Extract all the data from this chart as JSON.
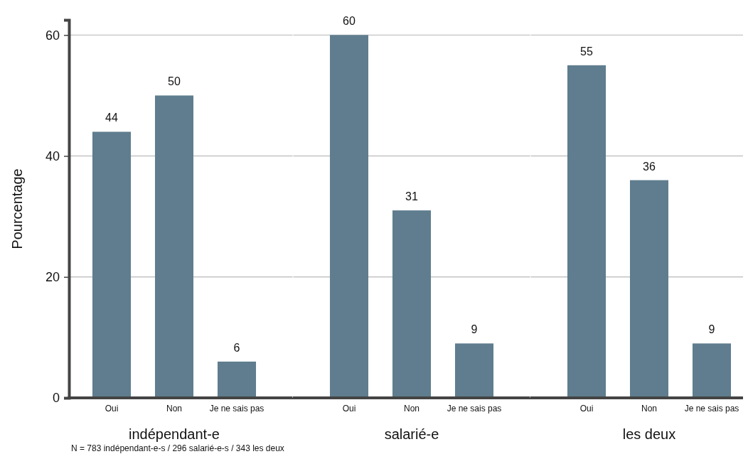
{
  "chart_data": [
    {
      "type": "bar",
      "xlabel": "indépendant-e",
      "ylabel": "Pourcentage",
      "categories": [
        "Oui",
        "Non",
        "Je ne sais pas"
      ],
      "values": [
        44,
        50,
        6
      ],
      "color": "#5f7d8e",
      "ylim": [
        0,
        62.5
      ],
      "yticks": [
        0,
        20,
        40,
        60
      ],
      "grid": "y",
      "data_labels": true,
      "annotations": [
        "N = 783 indépendant-e-s / 296 salarié-e-s / 343 les deux"
      ]
    },
    {
      "type": "bar",
      "xlabel": "salarié-e",
      "categories": [
        "Oui",
        "Non",
        "Je ne sais pas"
      ],
      "values": [
        60,
        31,
        9
      ],
      "color": "#5f7d8e",
      "ylim": [
        0,
        62.5
      ],
      "yticks": [
        0,
        20,
        40,
        60
      ],
      "grid": "y",
      "data_labels": true,
      "tick_labels": "x"
    },
    {
      "type": "bar",
      "xlabel": "les deux",
      "categories": [
        "Oui",
        "Non",
        "Je ne sais pas"
      ],
      "values": [
        55,
        36,
        9
      ],
      "color": "#5f7d8e",
      "ylim": [
        0,
        62.5
      ],
      "yticks": [
        0,
        20,
        40,
        60
      ],
      "grid": "y",
      "data_labels": true,
      "tick_labels": "x"
    }
  ]
}
